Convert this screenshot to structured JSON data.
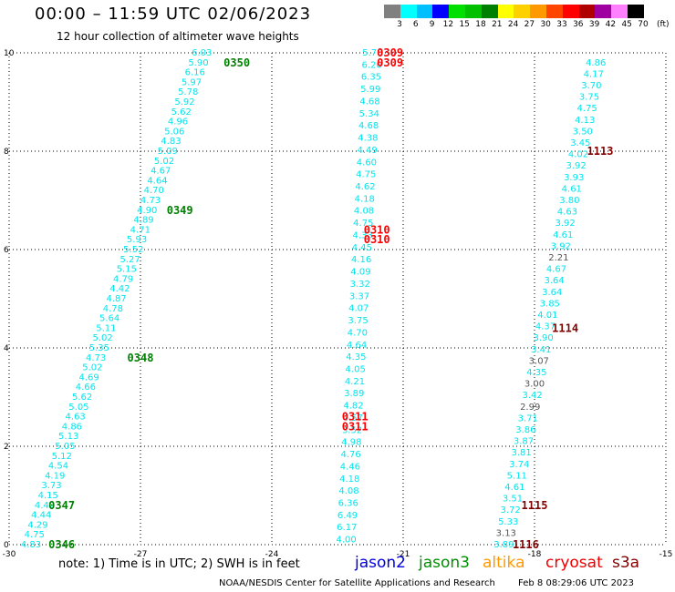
{
  "header": {
    "title": "00:00 – 11:59 UTC 02/06/2023",
    "subtitle": "12 hour collection of altimeter wave heights"
  },
  "color_scale": {
    "labels": [
      "3",
      "6",
      "9",
      "12",
      "15",
      "18",
      "21",
      "24",
      "27",
      "30",
      "33",
      "36",
      "39",
      "42",
      "45",
      "70"
    ],
    "unit": "(ft)",
    "colors": [
      "#808080",
      "#00ffff",
      "#00bfff",
      "#0000ff",
      "#00e000",
      "#00c000",
      "#008000",
      "#ffff00",
      "#ffd000",
      "#ff9900",
      "#ff4400",
      "#ff0000",
      "#b00000",
      "#a000a0",
      "#ff80ff",
      "#000000"
    ]
  },
  "chart_data": {
    "type": "scatter",
    "xlim": [
      -30,
      -15
    ],
    "ylim": [
      0,
      10
    ],
    "x_ticks": [
      "-30",
      "-27",
      "-24",
      "-21",
      "-18",
      "-15"
    ],
    "y_ticks": [
      "0",
      "2",
      "4",
      "6",
      "8",
      "10"
    ],
    "grid": true,
    "point_color": "#00e5ee",
    "tracks": [
      {
        "labels": [
          "4.83",
          "4.75",
          "4.29",
          "4.44",
          "4.42",
          "4.15",
          "3.73",
          "4.19",
          "4.54",
          "5.12",
          "5.05",
          "5.13",
          "4.86",
          "4.63",
          "5.05",
          "5.62",
          "4.66",
          "4.69",
          "5.02",
          "4.73",
          "5.35",
          "5.02",
          "5.11",
          "5.64",
          "4.78",
          "4.87",
          "4.42",
          "4.79",
          "5.15",
          "5.27",
          "5.52",
          "5.93",
          "4.71",
          "4.89",
          "4.90",
          "4.73",
          "4.70",
          "4.64",
          "4.67",
          "5.02",
          "5.09",
          "4.83",
          "5.06",
          "4.96",
          "5.62",
          "5.92",
          "5.78",
          "5.97",
          "6.16",
          "5.90",
          "6.03"
        ],
        "start": [
          -29.5,
          0.0
        ],
        "end": [
          -25.6,
          10.0
        ]
      },
      {
        "labels": [
          "4.00",
          "6.17",
          "6.49",
          "6.36",
          "4.08",
          "4.18",
          "4.46",
          "4.76",
          "4.98",
          "3.52",
          "4.57",
          "4.82",
          "3.89",
          "4.21",
          "4.05",
          "4.35",
          "4.64",
          "4.70",
          "3.75",
          "4.07",
          "3.37",
          "3.32",
          "4.09",
          "4.16",
          "4.45",
          "4.33",
          "4.75",
          "4.08",
          "4.18",
          "4.62",
          "4.75",
          "4.60",
          "4.49",
          "4.38",
          "4.68",
          "5.34",
          "4.68",
          "5.99",
          "6.35",
          "6.20",
          "5.78"
        ],
        "start": [
          -22.3,
          0.1
        ],
        "end": [
          -21.7,
          10.0
        ]
      },
      {
        "labels": [
          "3.89",
          "3.13",
          "5.33",
          "3.72",
          "3.51",
          "4.61",
          "5.11",
          "3.74",
          "3.81",
          "3.87",
          "3.86",
          "3.71",
          "2.99",
          "3.42",
          "3.00",
          "4.35",
          "3.07",
          "3.41",
          "3.90",
          "4.37",
          "4.01",
          "3.85",
          "3.64",
          "3.64",
          "4.67",
          "2.21",
          "3.92",
          "4.61",
          "3.92",
          "4.63",
          "3.80",
          "4.61",
          "3.93",
          "3.92",
          "4.02",
          "3.45",
          "3.50",
          "4.13",
          "4.75",
          "3.75",
          "3.70",
          "4.17",
          "4.86"
        ],
        "start": [
          -18.7,
          0.0
        ],
        "end": [
          -16.6,
          9.8
        ]
      }
    ],
    "pass_labels": [
      {
        "text": "0346",
        "color": "#008000",
        "x": -28.8,
        "y": 0.0
      },
      {
        "text": "0347",
        "color": "#008000",
        "x": -28.8,
        "y": 0.8
      },
      {
        "text": "0348",
        "color": "#008000",
        "x": -27.0,
        "y": 3.8
      },
      {
        "text": "0349",
        "color": "#008000",
        "x": -26.1,
        "y": 6.8
      },
      {
        "text": "0350",
        "color": "#008000",
        "x": -24.8,
        "y": 9.8
      },
      {
        "text": "0309",
        "color": "#ff0000",
        "x": -21.3,
        "y": 10.0
      },
      {
        "text": "0309",
        "color": "#ff0000",
        "x": -21.3,
        "y": 9.8
      },
      {
        "text": "0310",
        "color": "#ff0000",
        "x": -21.6,
        "y": 6.4
      },
      {
        "text": "0310",
        "color": "#ff0000",
        "x": -21.6,
        "y": 6.2
      },
      {
        "text": "0311",
        "color": "#ff0000",
        "x": -22.1,
        "y": 2.6
      },
      {
        "text": "0311",
        "color": "#ff0000",
        "x": -22.1,
        "y": 2.4
      },
      {
        "text": "1113",
        "color": "#800000",
        "x": -16.5,
        "y": 8.0
      },
      {
        "text": "1114",
        "color": "#800000",
        "x": -17.3,
        "y": 4.4
      },
      {
        "text": "1115",
        "color": "#800000",
        "x": -18.0,
        "y": 0.8
      },
      {
        "text": "1116",
        "color": "#800000",
        "x": -18.2,
        "y": 0.0
      }
    ]
  },
  "legend": {
    "items": [
      {
        "name": "jason2",
        "color": "#0000dd"
      },
      {
        "name": "jason3",
        "color": "#009000"
      },
      {
        "name": "altika",
        "color": "#ff9900"
      },
      {
        "name": "cryosat",
        "color": "#ee0000"
      },
      {
        "name": "s3a",
        "color": "#800000"
      }
    ]
  },
  "notes": {
    "text": "note:  1) Time is in UTC; 2) SWH is in feet",
    "credit": "NOAA/NESDIS Center for Satellite Applications and Research",
    "timestamp": "Feb  8 08:29:06 UTC 2023"
  }
}
